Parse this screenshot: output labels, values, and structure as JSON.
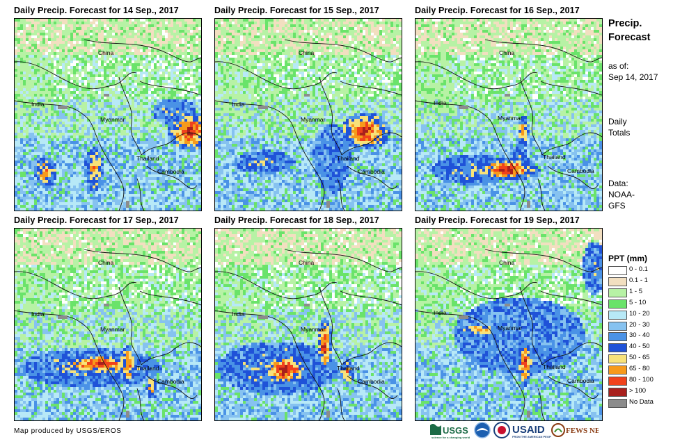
{
  "panels": [
    {
      "title": "Daily Precip. Forecast for 14 Sep., 2017",
      "scene": 0
    },
    {
      "title": "Daily Precip. Forecast for 15 Sep., 2017",
      "scene": 1
    },
    {
      "title": "Daily Precip. Forecast for 16 Sep., 2017",
      "scene": 2
    },
    {
      "title": "Daily Precip. Forecast for 17 Sep., 2017",
      "scene": 3
    },
    {
      "title": "Daily Precip. Forecast for 18 Sep., 2017",
      "scene": 4
    },
    {
      "title": "Daily Precip. Forecast for 19 Sep., 2017",
      "scene": 5
    }
  ],
  "map_labels": {
    "china": "China",
    "india": "India",
    "myanmar": "Myanmar",
    "thailand": "Thailand",
    "cambodia": "Cambodia"
  },
  "sidebar": {
    "title_line1": "Precip.",
    "title_line2": "Forecast",
    "asof_line1": "as of:",
    "asof_line2": "Sep 14, 2017",
    "totals_line1": "Daily",
    "totals_line2": "Totals",
    "data_line1": "Data:",
    "data_line2": "NOAA-",
    "data_line3": "GFS"
  },
  "legend": {
    "title": "PPT (mm)",
    "items": [
      {
        "label": "0 - 0.1",
        "color": "#ffffff"
      },
      {
        "label": "0.1 - 1",
        "color": "#f2dfc0"
      },
      {
        "label": "1 - 5",
        "color": "#b7f2a5"
      },
      {
        "label": "5 - 10",
        "color": "#6ae36a"
      },
      {
        "label": "10 - 20",
        "color": "#b7e9f7"
      },
      {
        "label": "20 - 30",
        "color": "#86c2f0"
      },
      {
        "label": "30 - 40",
        "color": "#4a92e6"
      },
      {
        "label": "40 - 50",
        "color": "#1f52d8"
      },
      {
        "label": "50 - 65",
        "color": "#f8e27a"
      },
      {
        "label": "65 - 80",
        "color": "#f79a1c"
      },
      {
        "label": "80 - 100",
        "color": "#f0421c"
      },
      {
        "label": "> 100",
        "color": "#a8201d"
      },
      {
        "label": "No Data",
        "color": "#8c8c8c"
      }
    ]
  },
  "footer": {
    "credit": "Map produced by USGS/EROS",
    "logos": [
      "USGS",
      "NOAA",
      "USAID",
      "FEWS NET"
    ]
  }
}
